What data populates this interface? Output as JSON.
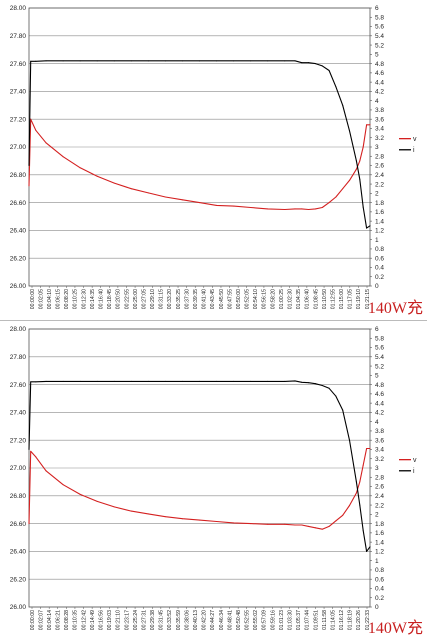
{
  "colors": {
    "voltage": "#d42020",
    "current": "#000000",
    "grid": "#8a8a8a",
    "caption": "#c82020"
  },
  "chart_data": [
    {
      "type": "line",
      "caption": "140W充",
      "grid": true,
      "legend_position": "right",
      "y_left": {
        "ylim": [
          26.0,
          28.0
        ],
        "ticks": [
          "26.00",
          "26.20",
          "26.40",
          "26.60",
          "26.80",
          "27.00",
          "27.20",
          "27.40",
          "27.60",
          "27.80",
          "28.00"
        ]
      },
      "y_right": {
        "ylim": [
          0,
          6
        ],
        "ticks": [
          "0",
          "0.2",
          "0.4",
          "0.6",
          "0.8",
          "1",
          "1.2",
          "1.4",
          "1.6",
          "1.8",
          "2",
          "2.2",
          "2.4",
          "2.6",
          "2.8",
          "3",
          "3.2",
          "3.4",
          "3.6",
          "3.8",
          "4",
          "4.2",
          "4.4",
          "4.6",
          "4.8",
          "5",
          "5.2",
          "5.4",
          "5.6",
          "5.8",
          "6"
        ]
      },
      "x_ticks": [
        "00:00:00",
        "00:02:05",
        "00:04:10",
        "00:06:15",
        "00:08:20",
        "00:10:25",
        "00:12:30",
        "00:14:35",
        "00:16:40",
        "00:18:45",
        "00:20:50",
        "00:22:55",
        "00:25:00",
        "00:27:05",
        "00:29:10",
        "00:31:15",
        "00:33:20",
        "00:35:25",
        "00:37:30",
        "00:39:35",
        "00:41:40",
        "00:43:45",
        "00:45:50",
        "00:47:55",
        "00:50:00",
        "00:52:05",
        "00:54:10",
        "00:56:15",
        "00:58:20",
        "01:00:25",
        "01:02:30",
        "01:04:35",
        "01:06:40",
        "01:08:45",
        "01:10:50",
        "01:12:55",
        "01:15:00",
        "01:17:05",
        "01:19:10",
        "01:21:15"
      ],
      "x_fraction": [
        0,
        0.005,
        0.02,
        0.05,
        0.1,
        0.15,
        0.2,
        0.25,
        0.3,
        0.35,
        0.4,
        0.45,
        0.5,
        0.55,
        0.6,
        0.65,
        0.7,
        0.75,
        0.78,
        0.8,
        0.82,
        0.84,
        0.86,
        0.88,
        0.9,
        0.92,
        0.94,
        0.96,
        0.97,
        0.98,
        0.99,
        1.0
      ],
      "series": [
        {
          "name": "v",
          "axis": "left",
          "values": [
            26.72,
            27.2,
            27.12,
            27.03,
            26.93,
            26.85,
            26.79,
            26.74,
            26.7,
            26.67,
            26.64,
            26.62,
            26.6,
            26.58,
            26.575,
            26.565,
            26.555,
            26.55,
            26.555,
            26.555,
            26.55,
            26.555,
            26.565,
            26.6,
            26.64,
            26.7,
            26.76,
            26.84,
            26.9,
            27.0,
            27.16,
            27.16
          ]
        },
        {
          "name": "i",
          "axis": "right",
          "values": [
            2.6,
            4.85,
            4.85,
            4.86,
            4.86,
            4.86,
            4.86,
            4.86,
            4.86,
            4.86,
            4.86,
            4.86,
            4.86,
            4.86,
            4.86,
            4.86,
            4.86,
            4.86,
            4.86,
            4.82,
            4.82,
            4.8,
            4.75,
            4.65,
            4.3,
            3.9,
            3.35,
            2.7,
            2.3,
            1.7,
            1.25,
            1.3
          ]
        }
      ]
    },
    {
      "type": "line",
      "caption": "140W充",
      "grid": true,
      "legend_position": "right",
      "y_left": {
        "ylim": [
          26.0,
          28.0
        ],
        "ticks": [
          "26.00",
          "26.20",
          "26.40",
          "26.60",
          "26.80",
          "27.00",
          "27.20",
          "27.40",
          "27.60",
          "27.80",
          "28.00"
        ]
      },
      "y_right": {
        "ylim": [
          0,
          6
        ],
        "ticks": [
          "0",
          "0.2",
          "0.4",
          "0.6",
          "0.8",
          "1",
          "1.2",
          "1.4",
          "1.6",
          "1.8",
          "2",
          "2.2",
          "2.4",
          "2.6",
          "2.8",
          "3",
          "3.2",
          "3.4",
          "3.6",
          "3.8",
          "4",
          "4.2",
          "4.4",
          "4.6",
          "4.8",
          "5",
          "5.2",
          "5.4",
          "5.6",
          "5.8",
          "6"
        ]
      },
      "x_ticks": [
        "00:00:00",
        "00:02:07",
        "00:04:14",
        "00:06:21",
        "00:08:28",
        "00:10:35",
        "00:12:42",
        "00:14:49",
        "00:16:56",
        "00:19:03",
        "00:21:10",
        "00:23:17",
        "00:25:24",
        "00:27:31",
        "00:29:38",
        "00:31:45",
        "00:33:52",
        "00:35:59",
        "00:38:06",
        "00:40:13",
        "00:42:20",
        "00:44:27",
        "00:46:34",
        "00:48:41",
        "00:50:48",
        "00:52:55",
        "00:55:02",
        "00:57:09",
        "00:59:16",
        "01:01:23",
        "01:03:30",
        "01:05:37",
        "01:07:44",
        "01:09:51",
        "01:11:58",
        "01:14:05",
        "01:16:12",
        "01:18:19",
        "01:20:26",
        "01:22:33"
      ],
      "x_fraction": [
        0,
        0.005,
        0.02,
        0.05,
        0.1,
        0.15,
        0.2,
        0.25,
        0.3,
        0.35,
        0.4,
        0.45,
        0.5,
        0.55,
        0.6,
        0.65,
        0.7,
        0.75,
        0.78,
        0.8,
        0.82,
        0.84,
        0.86,
        0.88,
        0.9,
        0.92,
        0.94,
        0.96,
        0.97,
        0.98,
        0.99,
        1.0
      ],
      "series": [
        {
          "name": "v",
          "axis": "left",
          "values": [
            26.6,
            27.12,
            27.08,
            26.98,
            26.88,
            26.81,
            26.76,
            26.72,
            26.69,
            26.67,
            26.65,
            26.635,
            26.625,
            26.615,
            26.605,
            26.6,
            26.595,
            26.595,
            26.59,
            26.59,
            26.58,
            26.57,
            26.56,
            26.58,
            26.62,
            26.66,
            26.73,
            26.82,
            26.9,
            27.02,
            27.14,
            27.14
          ]
        },
        {
          "name": "i",
          "axis": "right",
          "values": [
            3.4,
            4.86,
            4.86,
            4.87,
            4.87,
            4.87,
            4.87,
            4.87,
            4.87,
            4.87,
            4.87,
            4.87,
            4.87,
            4.87,
            4.87,
            4.87,
            4.87,
            4.87,
            4.88,
            4.85,
            4.84,
            4.82,
            4.78,
            4.72,
            4.55,
            4.25,
            3.6,
            2.7,
            2.2,
            1.65,
            1.2,
            1.3
          ]
        }
      ]
    }
  ]
}
